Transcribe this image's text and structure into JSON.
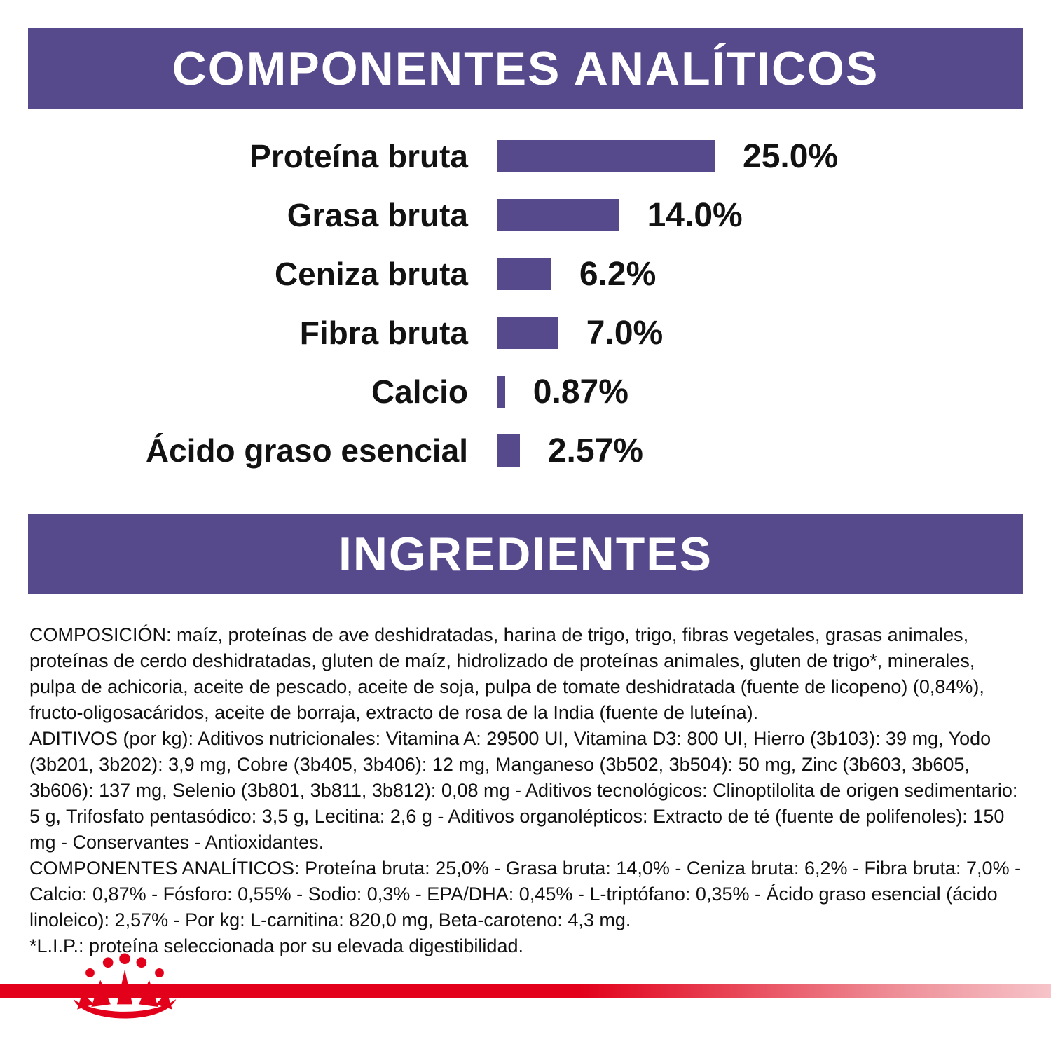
{
  "page": {
    "background": "#ffffff",
    "accent_purple": "#574a8c",
    "accent_red": "#e2001a"
  },
  "sections": {
    "analytical": {
      "title": "COMPONENTES ANALÍTICOS"
    },
    "ingredients": {
      "title": "INGREDIENTES"
    }
  },
  "chart_data": {
    "type": "bar",
    "orientation": "horizontal",
    "title": "COMPONENTES ANALÍTICOS",
    "categories": [
      "Proteína bruta",
      "Grasa bruta",
      "Ceniza bruta",
      "Fibra bruta",
      "Calcio",
      "Ácido graso esencial"
    ],
    "values": [
      25.0,
      14.0,
      6.2,
      7.0,
      0.87,
      2.57
    ],
    "value_labels": [
      "25.0%",
      "14.0%",
      "6.2%",
      "7.0%",
      "0.87%",
      "2.57%"
    ],
    "unit": "%",
    "xlim": [
      0,
      30
    ],
    "bar_color": "#574a8c",
    "grid": false,
    "legend": "none"
  },
  "ingredients_text": {
    "composicion": "COMPOSICIÓN: maíz, proteínas de ave deshidratadas, harina de trigo, trigo, fibras vegetales, grasas animales, proteínas de cerdo deshidratadas, gluten de maíz, hidrolizado de proteínas animales, gluten de trigo*, minerales, pulpa de achicoria, aceite de pescado, aceite de soja, pulpa de tomate deshidratada (fuente de licopeno) (0,84%), fructo-oligosacáridos, aceite de borraja, extracto de rosa de la India (fuente de luteína).",
    "aditivos": "ADITIVOS (por kg): Aditivos nutricionales: Vitamina A: 29500 UI, Vitamina D3: 800 UI, Hierro (3b103): 39 mg, Yodo (3b201, 3b202): 3,9 mg, Cobre (3b405, 3b406): 12 mg, Manganeso (3b502, 3b504): 50 mg, Zinc (3b603, 3b605, 3b606): 137 mg, Selenio (3b801, 3b811, 3b812): 0,08 mg - Aditivos tecnológicos: Clinoptilolita de origen sedimentario: 5 g, Trifosfato pentasódico: 3,5 g, Lecitina: 2,6 g - Aditivos organolépticos: Extracto de té (fuente de polifenoles): 150 mg - Conservantes - Antioxidantes.",
    "componentes_analiticos": "COMPONENTES ANALÍTICOS: Proteína bruta: 25,0% - Grasa bruta: 14,0% - Ceniza bruta: 6,2% - Fibra bruta: 7,0% - Calcio: 0,87% - Fósforo: 0,55% - Sodio: 0,3% - EPA/DHA: 0,45% - L-triptófano: 0,35% - Ácido graso esencial (ácido linoleico): 2,57% - Por kg: L-carnitina: 820,0 mg, Beta-caroteno: 4,3 mg.",
    "lip_note": "*L.I.P.: proteína seleccionada por su elevada digestibilidad."
  },
  "footer": {
    "logo_icon": "royal-canin-crown-icon"
  }
}
